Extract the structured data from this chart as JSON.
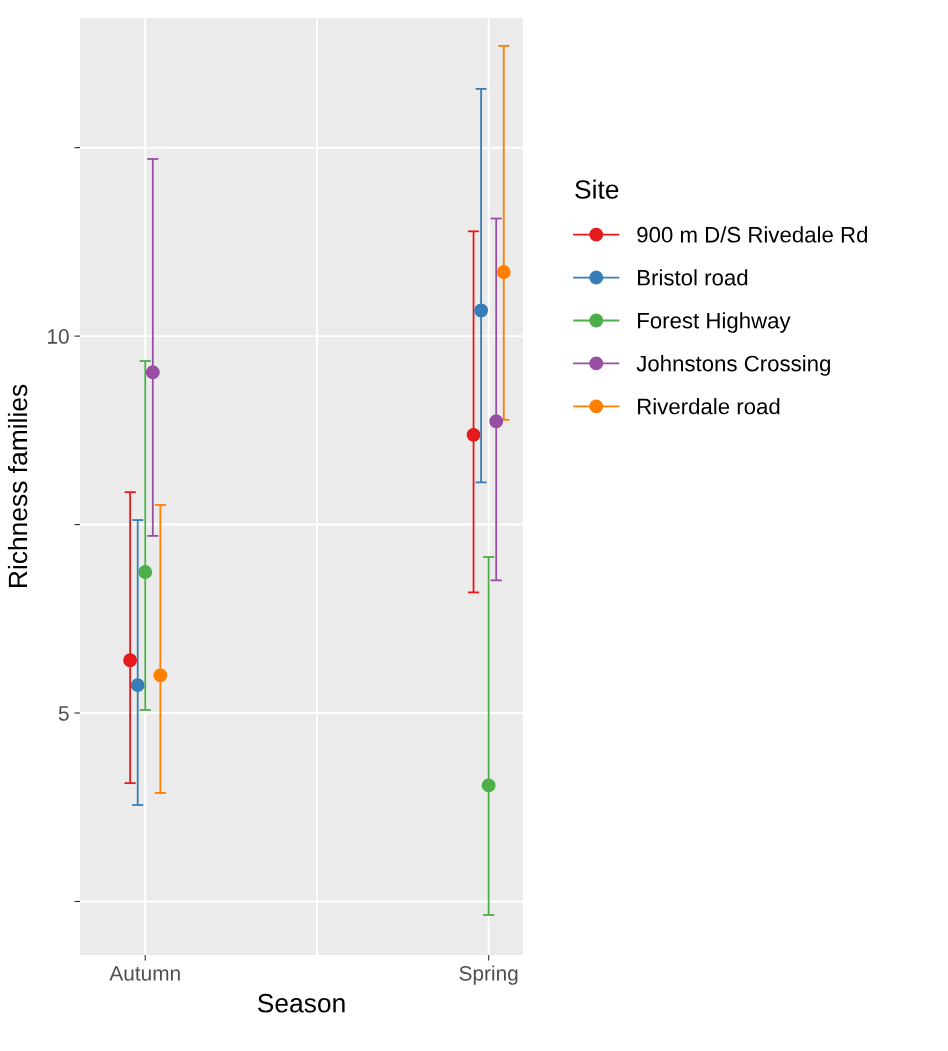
{
  "chart_data": {
    "type": "scatter",
    "xlabel": "Season",
    "ylabel": "Richness families",
    "legend_title": "Site",
    "categories": [
      "Autumn",
      "Spring"
    ],
    "series": [
      {
        "name": "900 m D/S Rivedale Rd",
        "color": "#e41a1c",
        "values": [
          5.7,
          8.69
        ],
        "errors": [
          [
            4.07,
            7.93
          ],
          [
            6.6,
            11.39
          ]
        ]
      },
      {
        "name": "Bristol road",
        "color": "#377eb8",
        "values": [
          5.37,
          10.34
        ],
        "errors": [
          [
            3.78,
            7.56
          ],
          [
            8.06,
            13.28
          ]
        ]
      },
      {
        "name": "Forest Highway",
        "color": "#4daf4a",
        "values": [
          6.87,
          4.04
        ],
        "errors": [
          [
            5.04,
            9.67
          ],
          [
            2.32,
            7.07
          ]
        ]
      },
      {
        "name": "Johnstons Crossing",
        "color": "#984ea3",
        "values": [
          9.52,
          8.87
        ],
        "errors": [
          [
            7.35,
            12.35
          ],
          [
            6.76,
            11.56
          ]
        ]
      },
      {
        "name": "Riverdale road",
        "color": "#ff7f00",
        "values": [
          5.5,
          10.85
        ],
        "errors": [
          [
            3.94,
            7.76
          ],
          [
            8.89,
            13.85
          ]
        ]
      }
    ],
    "ylim": [
      1.79,
      14.22
    ],
    "yticks": [
      {
        "value": 2.5,
        "label": null
      },
      5,
      {
        "value": 7.5,
        "label": null
      },
      10,
      {
        "value": 12.5,
        "label": null
      }
    ],
    "grid": true,
    "legend": "right",
    "marker": "circle"
  }
}
